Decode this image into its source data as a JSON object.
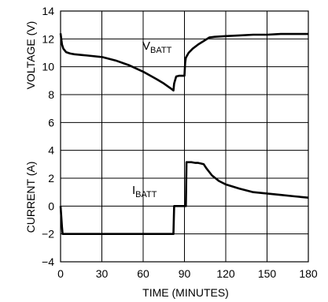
{
  "chart_data": {
    "type": "line",
    "title": "",
    "xlabel": "TIME (MINUTES)",
    "ylabel_upper": "VOLTAGE (V)",
    "ylabel_lower": "CURRENT (A)",
    "xlim": [
      0,
      180
    ],
    "ylim": [
      -4,
      14
    ],
    "x_ticks": [
      "0",
      "30",
      "60",
      "90",
      "120",
      "150",
      "180"
    ],
    "y_ticks": [
      "14",
      "12",
      "10",
      "8",
      "6",
      "4",
      "2",
      "0",
      "−2",
      "−4"
    ],
    "grid": true,
    "legend": "none",
    "line_color": "#000000",
    "annotations": [
      {
        "main": "V",
        "sub": "BATT"
      },
      {
        "main": "I",
        "sub": "BATT"
      }
    ],
    "series": [
      {
        "x": [
          0,
          0.5,
          1,
          2,
          4,
          7,
          10,
          15,
          20,
          30,
          40,
          50,
          60,
          70,
          75,
          80,
          82,
          82.5,
          84,
          86,
          88,
          90,
          90.5,
          91,
          93,
          96,
          100,
          104,
          108,
          112,
          120,
          130,
          140,
          150,
          160,
          170,
          180
        ],
        "y": [
          12.4,
          12.0,
          11.6,
          11.3,
          11.05,
          10.95,
          10.9,
          10.85,
          10.8,
          10.7,
          10.45,
          10.1,
          9.65,
          9.1,
          8.8,
          8.45,
          8.3,
          8.8,
          9.3,
          9.35,
          9.35,
          9.35,
          10.3,
          10.65,
          11.0,
          11.3,
          11.6,
          11.85,
          12.1,
          12.15,
          12.2,
          12.25,
          12.3,
          12.3,
          12.35,
          12.35,
          12.35
        ]
      },
      {
        "x": [
          0,
          1,
          1.5,
          2,
          82,
          82.5,
          91,
          91.5,
          95,
          98,
          100,
          102,
          104,
          106,
          110,
          115,
          120,
          130,
          140,
          150,
          160,
          170,
          180
        ],
        "y": [
          0,
          -1.5,
          -2.0,
          -2.0,
          -2.0,
          0,
          0,
          3.15,
          3.15,
          3.1,
          3.1,
          3.05,
          3.0,
          2.7,
          2.2,
          1.8,
          1.55,
          1.25,
          1.0,
          0.9,
          0.8,
          0.7,
          0.6
        ]
      }
    ]
  }
}
